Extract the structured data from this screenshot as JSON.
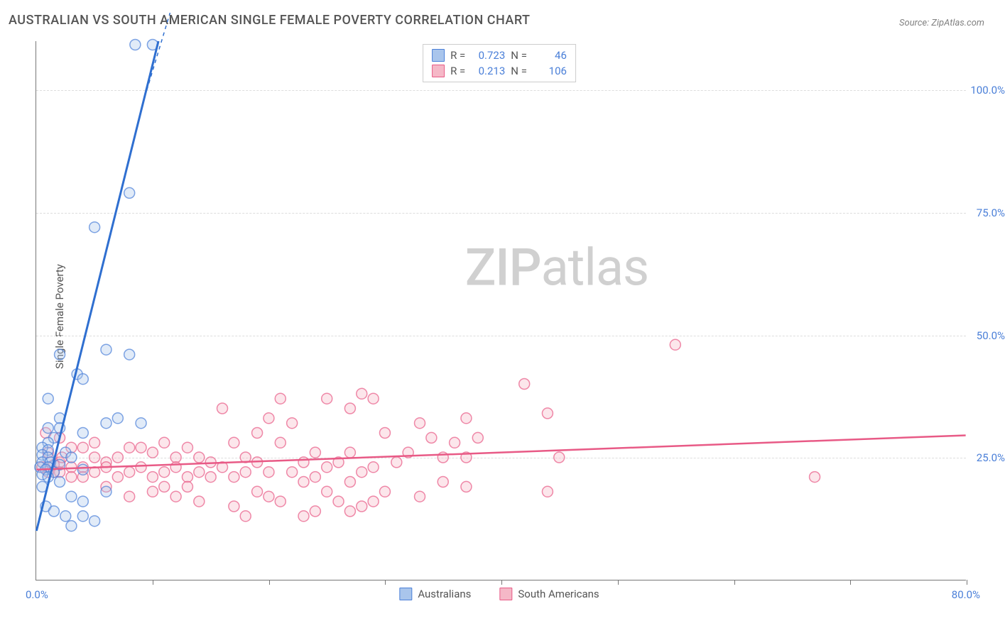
{
  "title": "AUSTRALIAN VS SOUTH AMERICAN SINGLE FEMALE POVERTY CORRELATION CHART",
  "source": "Source: ZipAtlas.com",
  "watermark_zip": "ZIP",
  "watermark_atlas": "atlas",
  "chart": {
    "type": "scatter",
    "xlim": [
      0,
      80
    ],
    "ylim": [
      0,
      110
    ],
    "y_axis_title": "Single Female Poverty",
    "xmin_label": "0.0%",
    "xmax_label": "80.0%",
    "yticks": [
      25,
      50,
      75,
      100
    ],
    "ytick_labels": [
      "25.0%",
      "50.0%",
      "75.0%",
      "100.0%"
    ],
    "xticks": [
      10,
      20,
      30,
      40,
      50,
      60,
      70,
      80
    ],
    "grid_color": "#dddddd",
    "background_color": "#ffffff",
    "axis_color": "#777777",
    "tick_label_color": "#4a7fd8",
    "marker_radius": 7.5,
    "marker_fill_opacity": 0.35,
    "marker_stroke_width": 1.5
  },
  "series": {
    "blue": {
      "label": "Australians",
      "color_fill": "#a9c5ec",
      "color_stroke": "#4a7fd8",
      "line_color": "#2f6fd0",
      "line_width": 3,
      "R": "0.723",
      "N": "46",
      "trend": {
        "x1": 0,
        "y1": 10,
        "x2": 10.5,
        "y2": 110
      },
      "dashed_extension": {
        "x1": 10.5,
        "y1": 110,
        "x2": 11.6,
        "y2": 120
      },
      "points": [
        [
          8.5,
          110
        ],
        [
          10,
          110
        ],
        [
          8,
          79
        ],
        [
          5,
          72
        ],
        [
          6,
          47
        ],
        [
          8,
          46
        ],
        [
          2,
          46
        ],
        [
          3.5,
          42
        ],
        [
          4,
          41
        ],
        [
          1,
          37
        ],
        [
          2,
          33
        ],
        [
          7,
          33
        ],
        [
          6,
          32
        ],
        [
          9,
          32
        ],
        [
          2,
          31
        ],
        [
          1,
          31
        ],
        [
          4,
          30
        ],
        [
          1.5,
          29
        ],
        [
          1,
          28
        ],
        [
          0.5,
          27
        ],
        [
          1,
          26.5
        ],
        [
          2.5,
          26
        ],
        [
          0.5,
          25.5
        ],
        [
          1,
          25
        ],
        [
          3,
          25
        ],
        [
          0.5,
          24
        ],
        [
          1.2,
          24
        ],
        [
          2,
          23.5
        ],
        [
          0.3,
          23
        ],
        [
          1,
          23
        ],
        [
          0.8,
          22.5
        ],
        [
          4,
          22.5
        ],
        [
          1.5,
          22
        ],
        [
          0.5,
          21.5
        ],
        [
          1,
          21
        ],
        [
          2,
          20
        ],
        [
          0.5,
          19
        ],
        [
          6,
          18
        ],
        [
          3,
          17
        ],
        [
          4,
          16
        ],
        [
          0.8,
          15
        ],
        [
          1.5,
          14
        ],
        [
          2.5,
          13
        ],
        [
          4,
          13
        ],
        [
          5,
          12
        ],
        [
          3,
          11
        ]
      ]
    },
    "pink": {
      "label": "South Americans",
      "color_fill": "#f5b8c7",
      "color_stroke": "#e85a86",
      "line_color": "#e85a86",
      "line_width": 2.5,
      "R": "0.213",
      "N": "106",
      "trend": {
        "x1": 0,
        "y1": 22.5,
        "x2": 80,
        "y2": 29.5
      },
      "points": [
        [
          55,
          48
        ],
        [
          67,
          21
        ],
        [
          42,
          40
        ],
        [
          21,
          37
        ],
        [
          25,
          37
        ],
        [
          28,
          38
        ],
        [
          29,
          37
        ],
        [
          27,
          35
        ],
        [
          20,
          33
        ],
        [
          19,
          30
        ],
        [
          37,
          33
        ],
        [
          44,
          34
        ],
        [
          22,
          32
        ],
        [
          30,
          30
        ],
        [
          33,
          32
        ],
        [
          35,
          25
        ],
        [
          16,
          35
        ],
        [
          17,
          28
        ],
        [
          24,
          26
        ],
        [
          44,
          18
        ],
        [
          11,
          28
        ],
        [
          13,
          27
        ],
        [
          14,
          25
        ],
        [
          15,
          24
        ],
        [
          18,
          25
        ],
        [
          20,
          22
        ],
        [
          37,
          25
        ],
        [
          21,
          16
        ],
        [
          10,
          26
        ],
        [
          12,
          25
        ],
        [
          9,
          27
        ],
        [
          9,
          23
        ],
        [
          8,
          22
        ],
        [
          8,
          27
        ],
        [
          7,
          25
        ],
        [
          7,
          21
        ],
        [
          6,
          24
        ],
        [
          6,
          23
        ],
        [
          5,
          22
        ],
        [
          5,
          25
        ],
        [
          4,
          23
        ],
        [
          4,
          21
        ],
        [
          3,
          23
        ],
        [
          3,
          21
        ],
        [
          2,
          24
        ],
        [
          2,
          22
        ],
        [
          1.5,
          22
        ],
        [
          1,
          22
        ],
        [
          10,
          21
        ],
        [
          11,
          22
        ],
        [
          12,
          23
        ],
        [
          13,
          21
        ],
        [
          14,
          22
        ],
        [
          15,
          21
        ],
        [
          16,
          23
        ],
        [
          17,
          21
        ],
        [
          18,
          22
        ],
        [
          19,
          24
        ],
        [
          27,
          26
        ],
        [
          25,
          23
        ],
        [
          23,
          24
        ],
        [
          22,
          22
        ],
        [
          26,
          24
        ],
        [
          28,
          22
        ],
        [
          29,
          23
        ],
        [
          31,
          24
        ],
        [
          32,
          26
        ],
        [
          30,
          18
        ],
        [
          24,
          14
        ],
        [
          26,
          16
        ],
        [
          25,
          18
        ],
        [
          27,
          14
        ],
        [
          28,
          15
        ],
        [
          29,
          16
        ],
        [
          23,
          13
        ],
        [
          20,
          17
        ],
        [
          19,
          18
        ],
        [
          18,
          13
        ],
        [
          17,
          15
        ],
        [
          2,
          29
        ],
        [
          1,
          26
        ],
        [
          0.8,
          30
        ],
        [
          2.2,
          25
        ],
        [
          1.5,
          23.5
        ],
        [
          0.5,
          23
        ],
        [
          11,
          19
        ],
        [
          12,
          17
        ],
        [
          13,
          19
        ],
        [
          14,
          16
        ],
        [
          6,
          19
        ],
        [
          8,
          17
        ],
        [
          10,
          18
        ],
        [
          4,
          27
        ],
        [
          5,
          28
        ],
        [
          3,
          27
        ],
        [
          21,
          28
        ],
        [
          34,
          29
        ],
        [
          36,
          28
        ],
        [
          38,
          29
        ],
        [
          33,
          17
        ],
        [
          35,
          20
        ],
        [
          37,
          19
        ],
        [
          23,
          20
        ],
        [
          24,
          21
        ],
        [
          45,
          25
        ],
        [
          27,
          20
        ]
      ]
    }
  },
  "legend_top": {
    "R_label": "R =",
    "N_label": "N ="
  }
}
